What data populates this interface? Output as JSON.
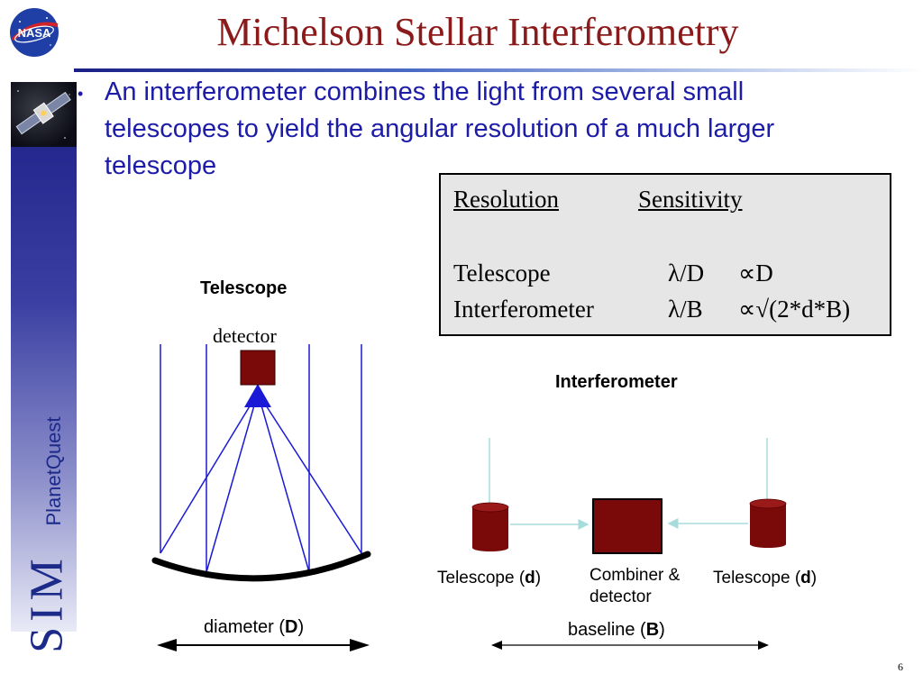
{
  "slide": {
    "title": "Michelson Stellar Interferometry",
    "page_number": "6"
  },
  "logo": {
    "text": "NASA"
  },
  "sidebar": {
    "brand_sim": "SIM",
    "brand_planetquest": "PlanetQuest"
  },
  "bullet": {
    "text": "An interferometer combines the light from several small telescopes to yield the angular resolution of a much larger telescope"
  },
  "table": {
    "headers": [
      "Resolution",
      "Sensitivity"
    ],
    "rows": [
      {
        "label": "Telescope",
        "resolution": "λ/D",
        "sensitivity": "∝D"
      },
      {
        "label": "Interferometer",
        "resolution": "λ/B",
        "sensitivity": "∝√(2*d*B)"
      }
    ]
  },
  "telescope_diagram": {
    "title": "Telescope",
    "detector_label": "detector",
    "diameter_prefix": "diameter (",
    "diameter_symbol": "D",
    "diameter_suffix": ")"
  },
  "interferometer_diagram": {
    "title": "Interferometer",
    "left_scope_prefix": "Telescope (",
    "left_scope_symbol": "d",
    "left_scope_suffix": ")",
    "right_scope_prefix": "Telescope (",
    "right_scope_symbol": "d",
    "right_scope_suffix": ")",
    "combiner_line1": "Combiner &",
    "combiner_line2": "detector",
    "baseline_prefix": "baseline (",
    "baseline_symbol": "B",
    "baseline_suffix": ")"
  },
  "colors": {
    "title": "#8b1a1a",
    "bullet": "#1c1ca8",
    "ray": "#1a1ad6",
    "detector": "#7a0a0a",
    "light_path": "#a8dcdc"
  }
}
